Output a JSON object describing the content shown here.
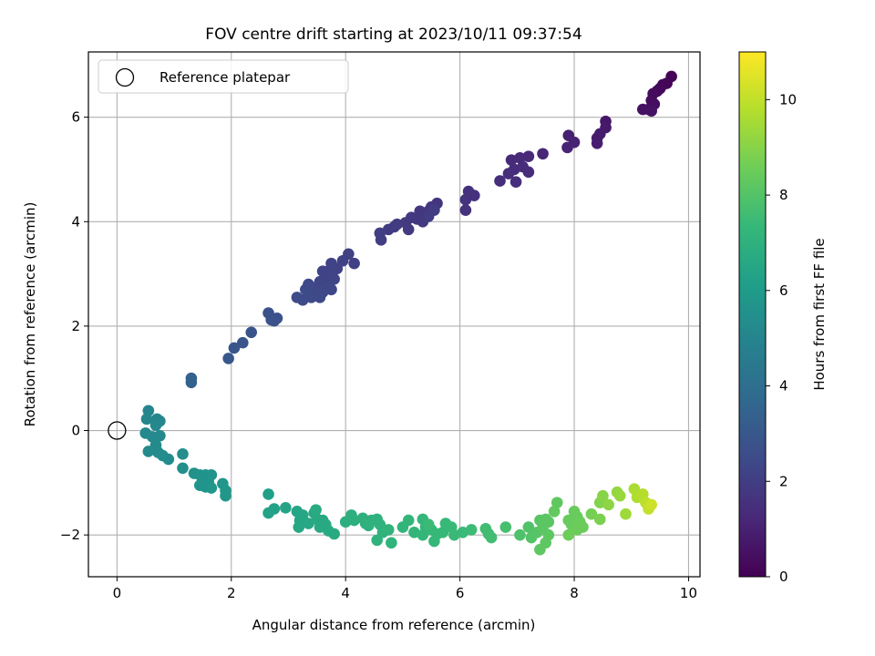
{
  "chart_data": {
    "type": "scatter",
    "title": "FOV centre drift starting at 2023/10/11 09:37:54",
    "xlabel": "Angular distance from reference (arcmin)",
    "ylabel": "Rotation from reference (arcmin)",
    "xlim": [
      -0.5,
      10.2
    ],
    "ylim": [
      -2.8,
      7.25
    ],
    "xticks": [
      0,
      2,
      4,
      6,
      8,
      10
    ],
    "xtick_labels": [
      "0",
      "2",
      "4",
      "6",
      "8",
      "10"
    ],
    "yticks": [
      -2,
      0,
      2,
      4,
      6
    ],
    "ytick_labels": [
      "−2",
      "0",
      "2",
      "4",
      "6"
    ],
    "grid": true,
    "legend": {
      "position": "top-left",
      "entries": [
        "Reference platepar"
      ]
    },
    "reference_point": {
      "x": 0,
      "y": 0,
      "marker": "open-circle"
    },
    "colorbar": {
      "label": "Hours from first FF file",
      "colormap": "viridis",
      "range": [
        0,
        11
      ],
      "ticks": [
        0,
        2,
        4,
        6,
        8,
        10
      ],
      "tick_labels": [
        "0",
        "2",
        "4",
        "6",
        "8",
        "10"
      ]
    },
    "points": [
      {
        "x": 9.7,
        "y": 6.78,
        "h": 0.05
      },
      {
        "x": 9.62,
        "y": 6.65,
        "h": 0.1
      },
      {
        "x": 9.55,
        "y": 6.62,
        "h": 0.15
      },
      {
        "x": 9.5,
        "y": 6.55,
        "h": 0.2
      },
      {
        "x": 9.45,
        "y": 6.5,
        "h": 0.25
      },
      {
        "x": 9.38,
        "y": 6.45,
        "h": 0.3
      },
      {
        "x": 9.35,
        "y": 6.32,
        "h": 0.35
      },
      {
        "x": 9.4,
        "y": 6.25,
        "h": 0.4
      },
      {
        "x": 9.3,
        "y": 6.15,
        "h": 0.45
      },
      {
        "x": 9.2,
        "y": 6.15,
        "h": 0.5
      },
      {
        "x": 9.35,
        "y": 6.12,
        "h": 0.55
      },
      {
        "x": 8.55,
        "y": 5.92,
        "h": 0.7
      },
      {
        "x": 8.55,
        "y": 5.8,
        "h": 0.75
      },
      {
        "x": 8.45,
        "y": 5.68,
        "h": 0.8
      },
      {
        "x": 8.4,
        "y": 5.6,
        "h": 0.85
      },
      {
        "x": 8.4,
        "y": 5.5,
        "h": 0.9
      },
      {
        "x": 7.9,
        "y": 5.65,
        "h": 1.0
      },
      {
        "x": 8.0,
        "y": 5.52,
        "h": 1.05
      },
      {
        "x": 7.88,
        "y": 5.42,
        "h": 1.1
      },
      {
        "x": 7.45,
        "y": 5.3,
        "h": 1.2
      },
      {
        "x": 7.2,
        "y": 5.25,
        "h": 1.25
      },
      {
        "x": 7.05,
        "y": 5.22,
        "h": 1.28
      },
      {
        "x": 6.9,
        "y": 5.18,
        "h": 1.32
      },
      {
        "x": 7.1,
        "y": 5.05,
        "h": 1.35
      },
      {
        "x": 6.95,
        "y": 5.0,
        "h": 1.38
      },
      {
        "x": 7.2,
        "y": 4.95,
        "h": 1.4
      },
      {
        "x": 6.85,
        "y": 4.92,
        "h": 1.42
      },
      {
        "x": 6.7,
        "y": 4.78,
        "h": 1.45
      },
      {
        "x": 6.98,
        "y": 4.76,
        "h": 1.48
      },
      {
        "x": 6.25,
        "y": 4.5,
        "h": 1.55
      },
      {
        "x": 6.15,
        "y": 4.58,
        "h": 1.58
      },
      {
        "x": 6.1,
        "y": 4.42,
        "h": 1.6
      },
      {
        "x": 6.1,
        "y": 4.22,
        "h": 1.62
      },
      {
        "x": 5.6,
        "y": 4.35,
        "h": 1.7
      },
      {
        "x": 5.5,
        "y": 4.28,
        "h": 1.72
      },
      {
        "x": 5.45,
        "y": 4.2,
        "h": 1.74
      },
      {
        "x": 5.4,
        "y": 4.15,
        "h": 1.76
      },
      {
        "x": 5.3,
        "y": 4.2,
        "h": 1.78
      },
      {
        "x": 5.25,
        "y": 4.05,
        "h": 1.8
      },
      {
        "x": 5.35,
        "y": 4.0,
        "h": 1.82
      },
      {
        "x": 5.15,
        "y": 4.08,
        "h": 1.84
      },
      {
        "x": 5.05,
        "y": 3.98,
        "h": 1.86
      },
      {
        "x": 5.1,
        "y": 3.85,
        "h": 1.88
      },
      {
        "x": 4.85,
        "y": 3.9,
        "h": 1.9
      },
      {
        "x": 4.75,
        "y": 3.85,
        "h": 1.92
      },
      {
        "x": 4.9,
        "y": 3.95,
        "h": 1.94
      },
      {
        "x": 5.45,
        "y": 4.1,
        "h": 1.96
      },
      {
        "x": 5.55,
        "y": 4.22,
        "h": 1.98
      },
      {
        "x": 4.6,
        "y": 3.78,
        "h": 2.0
      },
      {
        "x": 4.62,
        "y": 3.65,
        "h": 2.02
      },
      {
        "x": 4.15,
        "y": 3.2,
        "h": 2.1
      },
      {
        "x": 4.05,
        "y": 3.38,
        "h": 2.12
      },
      {
        "x": 3.95,
        "y": 3.25,
        "h": 2.14
      },
      {
        "x": 3.85,
        "y": 3.1,
        "h": 2.16
      },
      {
        "x": 3.75,
        "y": 3.2,
        "h": 2.18
      },
      {
        "x": 3.7,
        "y": 3.05,
        "h": 2.2
      },
      {
        "x": 3.6,
        "y": 3.05,
        "h": 2.22
      },
      {
        "x": 3.65,
        "y": 2.92,
        "h": 2.24
      },
      {
        "x": 3.55,
        "y": 2.85,
        "h": 2.26
      },
      {
        "x": 3.8,
        "y": 2.9,
        "h": 2.28
      },
      {
        "x": 3.5,
        "y": 2.75,
        "h": 2.3
      },
      {
        "x": 3.7,
        "y": 2.75,
        "h": 2.32
      },
      {
        "x": 3.75,
        "y": 2.7,
        "h": 2.34
      },
      {
        "x": 3.6,
        "y": 2.65,
        "h": 2.36
      },
      {
        "x": 3.45,
        "y": 2.65,
        "h": 2.38
      },
      {
        "x": 3.4,
        "y": 2.55,
        "h": 2.4
      },
      {
        "x": 3.55,
        "y": 2.55,
        "h": 2.42
      },
      {
        "x": 3.3,
        "y": 2.7,
        "h": 2.44
      },
      {
        "x": 3.35,
        "y": 2.8,
        "h": 2.46
      },
      {
        "x": 3.25,
        "y": 2.5,
        "h": 2.48
      },
      {
        "x": 3.15,
        "y": 2.55,
        "h": 2.5
      },
      {
        "x": 3.35,
        "y": 2.6,
        "h": 2.52
      },
      {
        "x": 2.8,
        "y": 2.15,
        "h": 2.7
      },
      {
        "x": 2.7,
        "y": 2.12,
        "h": 2.72
      },
      {
        "x": 2.65,
        "y": 2.25,
        "h": 2.74
      },
      {
        "x": 2.75,
        "y": 2.1,
        "h": 2.76
      },
      {
        "x": 2.35,
        "y": 1.88,
        "h": 2.85
      },
      {
        "x": 2.2,
        "y": 1.68,
        "h": 2.9
      },
      {
        "x": 2.05,
        "y": 1.58,
        "h": 2.95
      },
      {
        "x": 1.95,
        "y": 1.38,
        "h": 3.0
      },
      {
        "x": 1.3,
        "y": 1.0,
        "h": 3.4
      },
      {
        "x": 1.3,
        "y": 0.92,
        "h": 3.45
      },
      {
        "x": 0.55,
        "y": 0.38,
        "h": 5.0
      },
      {
        "x": 0.52,
        "y": 0.22,
        "h": 5.05
      },
      {
        "x": 0.7,
        "y": 0.22,
        "h": 5.1
      },
      {
        "x": 0.75,
        "y": 0.18,
        "h": 5.12
      },
      {
        "x": 0.68,
        "y": 0.1,
        "h": 5.15
      },
      {
        "x": 0.5,
        "y": -0.05,
        "h": 5.2
      },
      {
        "x": 0.62,
        "y": -0.12,
        "h": 5.22
      },
      {
        "x": 0.75,
        "y": -0.1,
        "h": 5.24
      },
      {
        "x": 0.68,
        "y": -0.28,
        "h": 5.26
      },
      {
        "x": 0.55,
        "y": -0.4,
        "h": 5.28
      },
      {
        "x": 0.72,
        "y": -0.42,
        "h": 5.3
      },
      {
        "x": 0.8,
        "y": -0.48,
        "h": 5.32
      },
      {
        "x": 0.9,
        "y": -0.55,
        "h": 5.34
      },
      {
        "x": 1.15,
        "y": -0.45,
        "h": 5.4
      },
      {
        "x": 1.15,
        "y": -0.72,
        "h": 5.45
      },
      {
        "x": 1.35,
        "y": -0.82,
        "h": 5.6
      },
      {
        "x": 1.45,
        "y": -0.85,
        "h": 5.62
      },
      {
        "x": 1.55,
        "y": -0.85,
        "h": 5.64
      },
      {
        "x": 1.65,
        "y": -0.85,
        "h": 5.66
      },
      {
        "x": 1.5,
        "y": -0.95,
        "h": 5.68
      },
      {
        "x": 1.6,
        "y": -0.98,
        "h": 5.7
      },
      {
        "x": 1.45,
        "y": -1.05,
        "h": 5.72
      },
      {
        "x": 1.55,
        "y": -1.08,
        "h": 5.74
      },
      {
        "x": 1.65,
        "y": -1.1,
        "h": 5.76
      },
      {
        "x": 1.85,
        "y": -1.02,
        "h": 5.78
      },
      {
        "x": 1.9,
        "y": -1.15,
        "h": 5.8
      },
      {
        "x": 1.9,
        "y": -1.25,
        "h": 5.82
      },
      {
        "x": 2.65,
        "y": -1.22,
        "h": 6.2
      },
      {
        "x": 2.75,
        "y": -1.5,
        "h": 6.25
      },
      {
        "x": 2.65,
        "y": -1.58,
        "h": 6.3
      },
      {
        "x": 2.95,
        "y": -1.48,
        "h": 6.4
      },
      {
        "x": 3.15,
        "y": -1.55,
        "h": 6.45
      },
      {
        "x": 3.25,
        "y": -1.62,
        "h": 6.5
      },
      {
        "x": 3.2,
        "y": -1.72,
        "h": 6.52
      },
      {
        "x": 3.35,
        "y": -1.78,
        "h": 6.54
      },
      {
        "x": 3.18,
        "y": -1.85,
        "h": 6.56
      },
      {
        "x": 3.45,
        "y": -1.58,
        "h": 6.58
      },
      {
        "x": 3.5,
        "y": -1.7,
        "h": 6.6
      },
      {
        "x": 3.6,
        "y": -1.72,
        "h": 6.62
      },
      {
        "x": 3.65,
        "y": -1.8,
        "h": 6.64
      },
      {
        "x": 3.55,
        "y": -1.85,
        "h": 6.66
      },
      {
        "x": 3.7,
        "y": -1.92,
        "h": 6.68
      },
      {
        "x": 3.8,
        "y": -1.98,
        "h": 6.7
      },
      {
        "x": 3.48,
        "y": -1.52,
        "h": 6.72
      },
      {
        "x": 4.0,
        "y": -1.75,
        "h": 6.9
      },
      {
        "x": 4.1,
        "y": -1.62,
        "h": 6.92
      },
      {
        "x": 4.15,
        "y": -1.72,
        "h": 6.94
      },
      {
        "x": 4.3,
        "y": -1.68,
        "h": 6.96
      },
      {
        "x": 4.35,
        "y": -1.78,
        "h": 6.98
      },
      {
        "x": 4.45,
        "y": -1.72,
        "h": 7.0
      },
      {
        "x": 4.55,
        "y": -1.7,
        "h": 7.02
      },
      {
        "x": 4.4,
        "y": -1.82,
        "h": 7.04
      },
      {
        "x": 4.6,
        "y": -1.8,
        "h": 7.06
      },
      {
        "x": 4.65,
        "y": -1.95,
        "h": 7.08
      },
      {
        "x": 4.55,
        "y": -2.1,
        "h": 7.1
      },
      {
        "x": 4.8,
        "y": -2.15,
        "h": 7.12
      },
      {
        "x": 4.75,
        "y": -1.9,
        "h": 7.14
      },
      {
        "x": 5.0,
        "y": -1.85,
        "h": 7.2
      },
      {
        "x": 5.1,
        "y": -1.72,
        "h": 7.22
      },
      {
        "x": 5.2,
        "y": -1.95,
        "h": 7.24
      },
      {
        "x": 5.35,
        "y": -1.7,
        "h": 7.26
      },
      {
        "x": 5.4,
        "y": -1.85,
        "h": 7.28
      },
      {
        "x": 5.35,
        "y": -2.0,
        "h": 7.3
      },
      {
        "x": 5.5,
        "y": -1.9,
        "h": 7.32
      },
      {
        "x": 5.55,
        "y": -2.12,
        "h": 7.34
      },
      {
        "x": 5.6,
        "y": -1.98,
        "h": 7.36
      },
      {
        "x": 5.75,
        "y": -1.78,
        "h": 7.38
      },
      {
        "x": 5.7,
        "y": -1.95,
        "h": 7.4
      },
      {
        "x": 5.85,
        "y": -1.85,
        "h": 7.42
      },
      {
        "x": 5.9,
        "y": -2.0,
        "h": 7.44
      },
      {
        "x": 6.05,
        "y": -1.95,
        "h": 7.46
      },
      {
        "x": 5.45,
        "y": -1.8,
        "h": 7.48
      },
      {
        "x": 6.2,
        "y": -1.9,
        "h": 7.5
      },
      {
        "x": 6.45,
        "y": -1.88,
        "h": 7.6
      },
      {
        "x": 6.5,
        "y": -1.98,
        "h": 7.62
      },
      {
        "x": 6.55,
        "y": -2.05,
        "h": 7.64
      },
      {
        "x": 6.8,
        "y": -1.85,
        "h": 7.7
      },
      {
        "x": 7.05,
        "y": -2.0,
        "h": 7.9
      },
      {
        "x": 7.2,
        "y": -1.85,
        "h": 7.95
      },
      {
        "x": 7.25,
        "y": -2.05,
        "h": 8.0
      },
      {
        "x": 7.35,
        "y": -1.95,
        "h": 8.05
      },
      {
        "x": 7.4,
        "y": -1.72,
        "h": 8.1
      },
      {
        "x": 7.45,
        "y": -1.8,
        "h": 8.12
      },
      {
        "x": 7.5,
        "y": -1.7,
        "h": 8.14
      },
      {
        "x": 7.55,
        "y": -1.75,
        "h": 8.16
      },
      {
        "x": 7.45,
        "y": -1.88,
        "h": 8.18
      },
      {
        "x": 7.55,
        "y": -2.0,
        "h": 8.2
      },
      {
        "x": 7.5,
        "y": -2.15,
        "h": 8.22
      },
      {
        "x": 7.4,
        "y": -2.28,
        "h": 8.24
      },
      {
        "x": 7.7,
        "y": -1.38,
        "h": 8.3
      },
      {
        "x": 7.65,
        "y": -1.55,
        "h": 8.32
      },
      {
        "x": 7.9,
        "y": -1.72,
        "h": 8.4
      },
      {
        "x": 7.95,
        "y": -1.8,
        "h": 8.42
      },
      {
        "x": 8.0,
        "y": -1.55,
        "h": 8.44
      },
      {
        "x": 8.05,
        "y": -1.65,
        "h": 8.46
      },
      {
        "x": 8.1,
        "y": -1.75,
        "h": 8.48
      },
      {
        "x": 8.15,
        "y": -1.85,
        "h": 8.5
      },
      {
        "x": 8.05,
        "y": -1.9,
        "h": 8.52
      },
      {
        "x": 7.9,
        "y": -2.0,
        "h": 8.54
      },
      {
        "x": 8.3,
        "y": -1.6,
        "h": 8.7
      },
      {
        "x": 8.45,
        "y": -1.7,
        "h": 8.8
      },
      {
        "x": 8.45,
        "y": -1.38,
        "h": 8.9
      },
      {
        "x": 8.5,
        "y": -1.25,
        "h": 9.0
      },
      {
        "x": 8.6,
        "y": -1.42,
        "h": 9.1
      },
      {
        "x": 8.75,
        "y": -1.18,
        "h": 9.2
      },
      {
        "x": 8.8,
        "y": -1.25,
        "h": 9.3
      },
      {
        "x": 8.9,
        "y": -1.6,
        "h": 9.4
      },
      {
        "x": 9.05,
        "y": -1.12,
        "h": 9.6
      },
      {
        "x": 9.1,
        "y": -1.28,
        "h": 9.7
      },
      {
        "x": 9.2,
        "y": -1.22,
        "h": 9.8
      },
      {
        "x": 9.25,
        "y": -1.38,
        "h": 9.9
      },
      {
        "x": 9.3,
        "y": -1.5,
        "h": 10.0
      },
      {
        "x": 9.35,
        "y": -1.42,
        "h": 10.2
      }
    ]
  }
}
